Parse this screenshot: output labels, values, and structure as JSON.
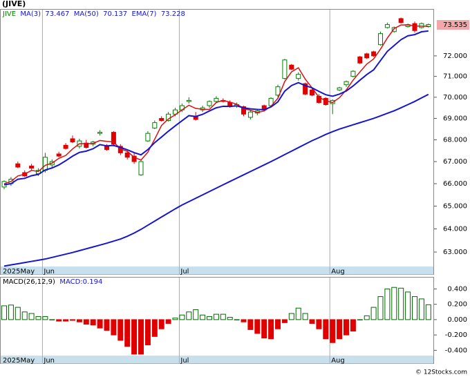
{
  "chart_data": [
    {
      "type": "candlestick",
      "title": "(JIVE)",
      "categories": [
        "2025May",
        null,
        null,
        null,
        null,
        null,
        "Jun",
        null,
        null,
        null,
        null,
        null,
        null,
        null,
        null,
        null,
        null,
        null,
        null,
        null,
        null,
        null,
        null,
        null,
        null,
        null,
        "Jul",
        null,
        null,
        null,
        null,
        null,
        null,
        null,
        null,
        null,
        null,
        null,
        null,
        null,
        null,
        null,
        null,
        null,
        null,
        null,
        null,
        null,
        "Aug",
        null,
        null,
        null,
        null,
        null,
        null,
        null,
        null,
        null,
        null,
        null,
        null,
        null,
        null
      ],
      "log_scale": true,
      "ylim": [
        62.06,
        74.3
      ],
      "yticks": [
        {
          "value": 63,
          "label": "63.000"
        },
        {
          "value": 64,
          "label": "64.000"
        },
        {
          "value": 65,
          "label": "65.000"
        },
        {
          "value": 66,
          "label": "66.000"
        },
        {
          "value": 67,
          "label": "67.000"
        },
        {
          "value": 68,
          "label": "68.000"
        },
        {
          "value": 69,
          "label": "69.000"
        },
        {
          "value": 70,
          "label": "70.000"
        },
        {
          "value": 71,
          "label": "71.000"
        },
        {
          "value": 72,
          "label": "72.000"
        }
      ],
      "last_price": 73.535,
      "last_price_color": "#f2a8a8",
      "candles": {
        "name": "JIVE",
        "color": "#008000",
        "up_color": "#008000",
        "down_color": "#e00000",
        "open": [
          65.85,
          66.0,
          66.9,
          66.5,
          66.8,
          66.45,
          66.6,
          66.85,
          67.35,
          67.75,
          68.05,
          67.7,
          67.85,
          67.8,
          68.3,
          67.7,
          68.35,
          67.7,
          67.4,
          67.25,
          66.4,
          67.95,
          68.55,
          69.0,
          68.9,
          69.2,
          69.4,
          69.8,
          69.1,
          69.4,
          69.6,
          69.8,
          69.85,
          69.75,
          69.6,
          69.55,
          69.05,
          69.25,
          69.6,
          69.6,
          70.1,
          70.9,
          71.55,
          70.9,
          70.65,
          70.35,
          70.05,
          69.95,
          69.7,
          70.35,
          70.6,
          71.0,
          71.95,
          72.1,
          72.2,
          72.55,
          73.4,
          73.2,
          73.85,
          73.45,
          73.6,
          73.4,
          73.45
        ],
        "high": [
          66.15,
          66.3,
          67.0,
          66.6,
          66.9,
          66.7,
          67.4,
          67.1,
          67.45,
          67.85,
          68.2,
          68.05,
          68.0,
          67.95,
          68.45,
          67.8,
          68.4,
          67.8,
          67.5,
          67.4,
          67.1,
          68.4,
          68.9,
          69.1,
          69.3,
          69.5,
          69.7,
          70.0,
          69.3,
          69.6,
          69.85,
          70.05,
          69.95,
          69.85,
          69.75,
          69.6,
          69.4,
          69.45,
          69.65,
          70.0,
          70.6,
          71.85,
          71.6,
          71.2,
          70.7,
          70.45,
          70.15,
          70.0,
          69.9,
          70.5,
          70.8,
          71.3,
          72.0,
          72.15,
          72.25,
          73.2,
          73.65,
          73.45,
          73.9,
          73.6,
          73.7,
          73.65,
          73.6
        ],
        "low": [
          65.75,
          65.9,
          66.7,
          66.3,
          66.6,
          66.35,
          66.5,
          66.7,
          67.2,
          67.55,
          67.85,
          67.6,
          67.6,
          67.7,
          68.2,
          67.5,
          67.7,
          67.3,
          67.1,
          66.9,
          66.35,
          67.9,
          68.5,
          68.85,
          68.85,
          69.1,
          69.3,
          69.7,
          68.9,
          69.3,
          69.5,
          69.75,
          69.75,
          69.5,
          69.5,
          69.1,
          68.95,
          69.15,
          69.35,
          69.55,
          70.0,
          70.85,
          71.3,
          70.8,
          70.1,
          70.05,
          69.7,
          69.6,
          69.2,
          70.3,
          70.5,
          70.95,
          71.6,
          71.85,
          71.95,
          72.5,
          73.35,
          73.15,
          73.6,
          73.4,
          73.15,
          73.35,
          73.4
        ],
        "close": [
          66.1,
          66.2,
          66.75,
          66.35,
          66.7,
          66.6,
          67.2,
          67.0,
          67.25,
          67.6,
          67.9,
          67.95,
          67.65,
          67.9,
          68.35,
          67.55,
          67.8,
          67.4,
          67.2,
          67.0,
          67.0,
          68.3,
          68.8,
          68.9,
          69.2,
          69.4,
          69.6,
          69.85,
          68.95,
          69.5,
          69.8,
          69.95,
          69.8,
          69.55,
          69.65,
          69.2,
          69.3,
          69.35,
          69.4,
          69.95,
          70.5,
          71.8,
          71.35,
          71.1,
          70.15,
          70.1,
          69.75,
          69.65,
          69.85,
          70.45,
          70.75,
          71.25,
          71.65,
          71.9,
          72.0,
          73.1,
          73.55,
          73.4,
          73.65,
          73.55,
          73.25,
          73.6,
          73.55
        ]
      },
      "series": [
        {
          "name": "MA(3)",
          "last": 73.467,
          "color": "#d81010",
          "width": 1.5,
          "values": [
            66.0,
            66.1,
            66.35,
            66.43,
            66.6,
            66.55,
            66.83,
            66.93,
            67.15,
            67.28,
            67.58,
            67.82,
            67.83,
            67.83,
            67.97,
            67.93,
            67.9,
            67.58,
            67.47,
            67.2,
            67.07,
            67.43,
            68.03,
            68.67,
            68.97,
            69.17,
            69.4,
            69.62,
            69.47,
            69.43,
            69.42,
            69.75,
            69.85,
            69.77,
            69.67,
            69.47,
            69.38,
            69.28,
            69.35,
            69.57,
            69.95,
            70.75,
            71.22,
            71.42,
            70.87,
            70.45,
            70.0,
            69.83,
            69.75,
            69.98,
            70.35,
            70.82,
            71.22,
            71.6,
            71.85,
            72.33,
            72.88,
            73.35,
            73.53,
            73.53,
            73.48,
            73.47,
            73.467
          ]
        },
        {
          "name": "MA(50)",
          "last": 70.137,
          "color": "#1515d0",
          "width": 2,
          "values": [
            62.4,
            62.45,
            62.5,
            62.55,
            62.6,
            62.65,
            62.7,
            62.77,
            62.84,
            62.91,
            62.98,
            63.06,
            63.14,
            63.22,
            63.3,
            63.38,
            63.47,
            63.56,
            63.68,
            63.82,
            63.98,
            64.16,
            64.34,
            64.52,
            64.7,
            64.88,
            65.05,
            65.2,
            65.35,
            65.5,
            65.65,
            65.8,
            65.95,
            66.1,
            66.25,
            66.4,
            66.55,
            66.7,
            66.85,
            67.0,
            67.16,
            67.32,
            67.48,
            67.64,
            67.8,
            67.96,
            68.1,
            68.25,
            68.38,
            68.5,
            68.6,
            68.7,
            68.8,
            68.9,
            69.0,
            69.12,
            69.24,
            69.36,
            69.5,
            69.65,
            69.8,
            69.97,
            70.137
          ]
        },
        {
          "name": "EMA(7)",
          "last": 73.228,
          "color": "#1515d0",
          "width": 2,
          "values": [
            65.95,
            66.0,
            66.2,
            66.24,
            66.36,
            66.42,
            66.62,
            66.71,
            66.85,
            67.04,
            67.25,
            67.42,
            67.48,
            67.59,
            67.78,
            67.72,
            67.74,
            67.65,
            67.54,
            67.41,
            67.31,
            67.55,
            67.87,
            68.13,
            68.4,
            68.65,
            68.89,
            69.13,
            69.09,
            69.19,
            69.35,
            69.5,
            69.57,
            69.57,
            69.59,
            69.5,
            69.45,
            69.42,
            69.41,
            69.54,
            69.78,
            70.29,
            70.56,
            70.7,
            70.56,
            70.45,
            70.28,
            70.12,
            70.05,
            70.15,
            70.3,
            70.54,
            70.82,
            71.09,
            71.32,
            71.77,
            72.22,
            72.51,
            72.8,
            72.99,
            73.05,
            73.19,
            73.228
          ]
        }
      ]
    },
    {
      "type": "bar",
      "title": "MACD(26,12,9)",
      "categories": [
        "2025May",
        null,
        null,
        null,
        null,
        null,
        "Jun",
        null,
        null,
        null,
        null,
        null,
        null,
        null,
        null,
        null,
        null,
        null,
        null,
        null,
        null,
        null,
        null,
        null,
        null,
        null,
        "Jul",
        null,
        null,
        null,
        null,
        null,
        null,
        null,
        null,
        null,
        null,
        null,
        null,
        null,
        null,
        null,
        null,
        null,
        null,
        null,
        null,
        null,
        "Aug",
        null,
        null,
        null,
        null,
        null,
        null,
        null,
        null,
        null,
        null,
        null,
        null,
        null,
        null
      ],
      "ylim": [
        -0.46,
        0.53
      ],
      "yticks": [
        {
          "value": 0.4,
          "label": "0.400"
        },
        {
          "value": 0.2,
          "label": "0.200"
        },
        {
          "value": 0,
          "label": "0.000"
        },
        {
          "value": -0.2,
          "label": "-0.200"
        },
        {
          "value": -0.4,
          "label": "-0.400"
        }
      ],
      "series": [
        {
          "name": "MACD:",
          "last": 0.194,
          "up_color": "#006600",
          "down_color": "#e00000",
          "values": [
            0.18,
            0.19,
            0.16,
            0.1,
            0.08,
            0.04,
            0.04,
            0.0,
            -0.02,
            -0.02,
            -0.01,
            -0.03,
            -0.06,
            -0.07,
            -0.11,
            -0.14,
            -0.2,
            -0.27,
            -0.35,
            -0.45,
            -0.45,
            -0.33,
            -0.22,
            -0.12,
            -0.05,
            0.02,
            0.06,
            0.1,
            0.13,
            0.06,
            0.04,
            0.07,
            0.07,
            0.03,
            0.0,
            -0.03,
            -0.13,
            -0.18,
            -0.24,
            -0.25,
            -0.12,
            -0.04,
            0.08,
            0.15,
            0.08,
            -0.05,
            -0.12,
            -0.25,
            -0.3,
            -0.25,
            -0.2,
            -0.15,
            0.0,
            0.05,
            0.16,
            0.3,
            0.4,
            0.42,
            0.41,
            0.36,
            0.3,
            0.27,
            0.194
          ]
        }
      ]
    }
  ],
  "footer": "© 12Stocks.com"
}
